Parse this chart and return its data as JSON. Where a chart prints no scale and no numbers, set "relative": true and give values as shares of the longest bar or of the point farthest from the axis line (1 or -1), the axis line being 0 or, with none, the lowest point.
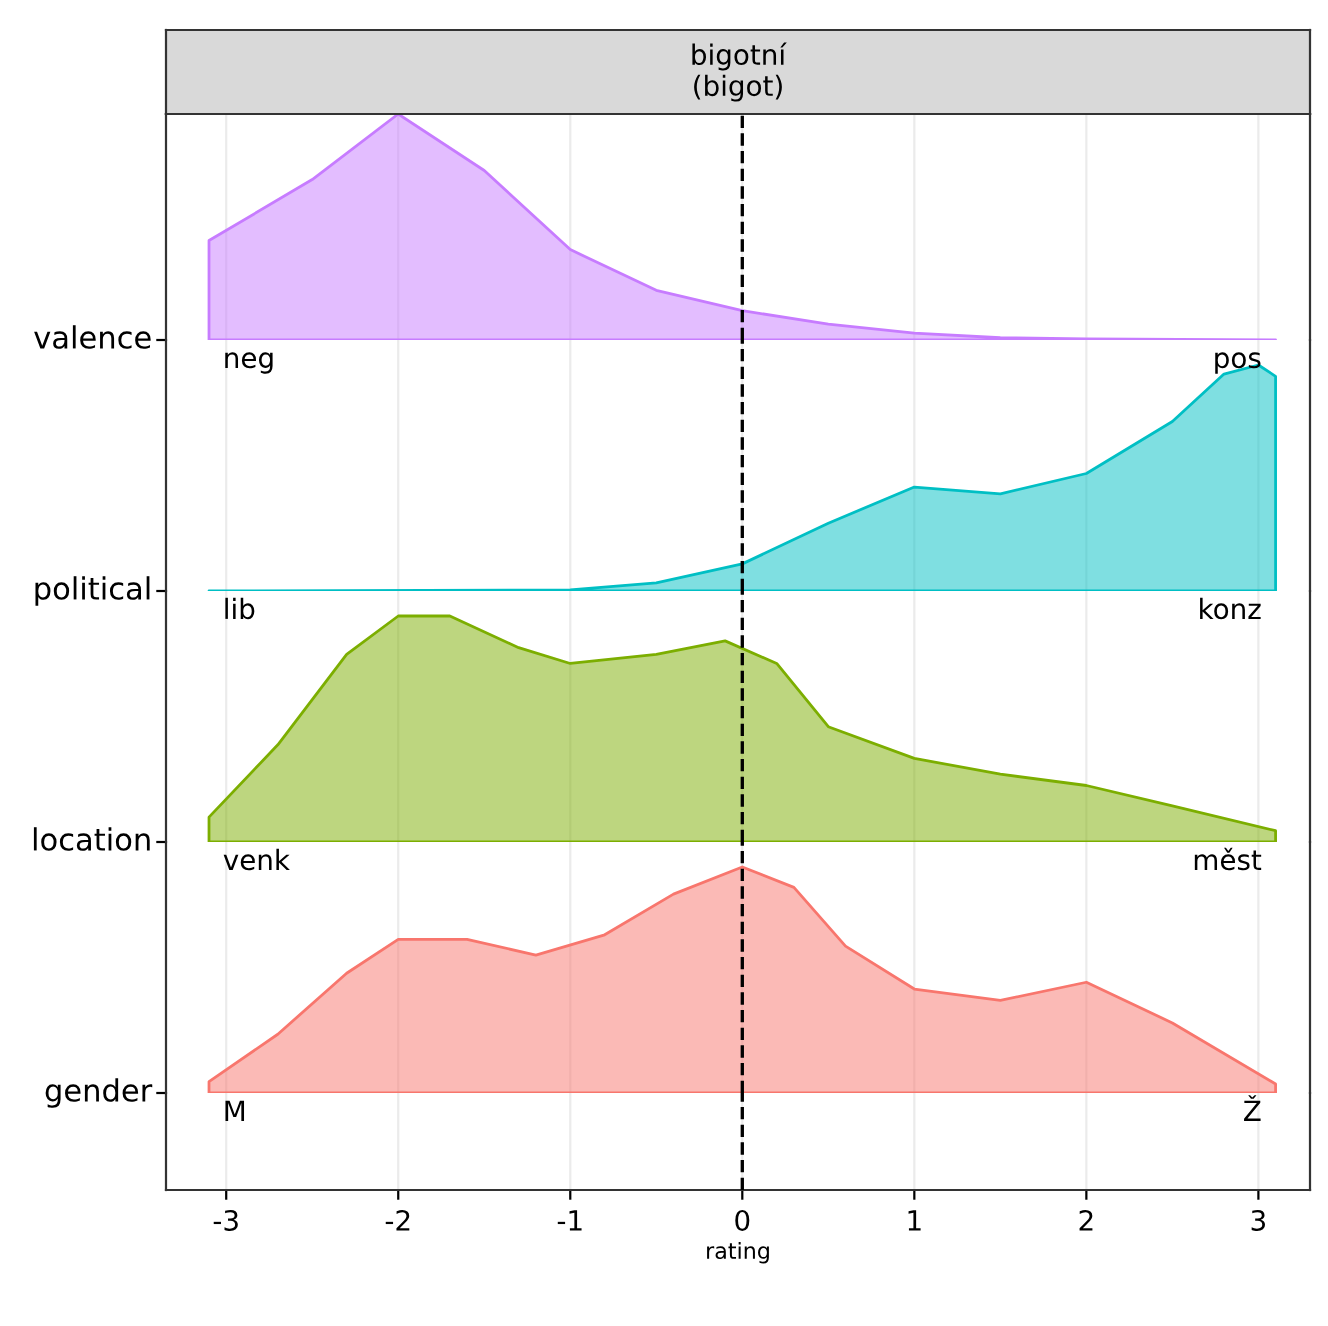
{
  "chart_data": [
    {
      "type": "area",
      "title": "bigotní\n(bigot)",
      "relative": true,
      "xlim": [
        -3.35,
        3.3
      ],
      "xticks": [
        -3,
        -2,
        -1,
        0,
        1,
        2,
        3
      ],
      "tick_labels": false,
      "grid": "x",
      "ref_lines": [
        {
          "axis": "x",
          "value": 0,
          "line_style": "dashed",
          "color": "#000000"
        }
      ],
      "annotations": [
        "neg",
        "pos"
      ],
      "series": [
        {
          "name": "valence",
          "color": "#c77cff",
          "x": [
            -3.1,
            -2.5,
            -2.0,
            -1.5,
            -1.0,
            -0.5,
            0,
            0.5,
            1.0,
            1.5,
            2.0,
            3.1
          ],
          "values": [
            0.44,
            0.71,
            1.0,
            0.75,
            0.4,
            0.22,
            0.13,
            0.07,
            0.03,
            0.01,
            0.005,
            0
          ]
        }
      ]
    },
    {
      "type": "area",
      "relative": true,
      "xlim": [
        -3.35,
        3.3
      ],
      "xticks": [
        -3,
        -2,
        -1,
        0,
        1,
        2,
        3
      ],
      "tick_labels": false,
      "grid": "x",
      "ref_lines": [
        {
          "axis": "x",
          "value": 0,
          "line_style": "dashed",
          "color": "#000000"
        }
      ],
      "annotations": [
        "lib",
        "konz"
      ],
      "series": [
        {
          "name": "political",
          "color": "#00bfc4",
          "x": [
            -3.1,
            -1.0,
            -0.5,
            0,
            0.5,
            1.0,
            1.5,
            2.0,
            2.5,
            2.8,
            3.0,
            3.1
          ],
          "values": [
            0,
            0.005,
            0.036,
            0.12,
            0.3,
            0.46,
            0.43,
            0.52,
            0.75,
            0.96,
            1.0,
            0.95
          ]
        }
      ]
    },
    {
      "type": "area",
      "relative": true,
      "xlim": [
        -3.35,
        3.3
      ],
      "xticks": [
        -3,
        -2,
        -1,
        0,
        1,
        2,
        3
      ],
      "tick_labels": false,
      "grid": "x",
      "ref_lines": [
        {
          "axis": "x",
          "value": 0,
          "line_style": "dashed",
          "color": "#000000"
        }
      ],
      "annotations": [
        "venk",
        "měst"
      ],
      "series": [
        {
          "name": "location",
          "color": "#7cae00",
          "x": [
            -3.1,
            -2.7,
            -2.3,
            -2.0,
            -1.7,
            -1.3,
            -1.0,
            -0.5,
            -0.1,
            0.2,
            0.5,
            1.0,
            1.5,
            2.0,
            2.5,
            3.1
          ],
          "values": [
            0.11,
            0.43,
            0.83,
            1.0,
            1.0,
            0.86,
            0.79,
            0.83,
            0.89,
            0.79,
            0.51,
            0.37,
            0.3,
            0.25,
            0.16,
            0.05
          ]
        }
      ]
    },
    {
      "type": "area",
      "xlabel": "rating",
      "relative": true,
      "xlim": [
        -3.35,
        3.3
      ],
      "xticks": [
        {
          "value": -3,
          "label": "-3"
        },
        {
          "value": -2,
          "label": "-2"
        },
        {
          "value": -1,
          "label": "-1"
        },
        0,
        1,
        2,
        3
      ],
      "tick_labels": "x",
      "grid": "x",
      "ref_lines": [
        {
          "axis": "x",
          "value": 0,
          "line_style": "dashed",
          "color": "#000000"
        }
      ],
      "annotations": [
        "M",
        "Ž"
      ],
      "series": [
        {
          "name": "gender",
          "color": "#f8766d",
          "x": [
            -3.1,
            -2.7,
            -2.3,
            -2.0,
            -1.6,
            -1.2,
            -0.8,
            -0.4,
            0,
            0.3,
            0.6,
            1.0,
            1.5,
            2.0,
            2.5,
            3.1
          ],
          "values": [
            0.05,
            0.26,
            0.53,
            0.68,
            0.68,
            0.61,
            0.7,
            0.88,
            1.0,
            0.91,
            0.65,
            0.46,
            0.41,
            0.49,
            0.31,
            0.04
          ]
        }
      ]
    }
  ]
}
